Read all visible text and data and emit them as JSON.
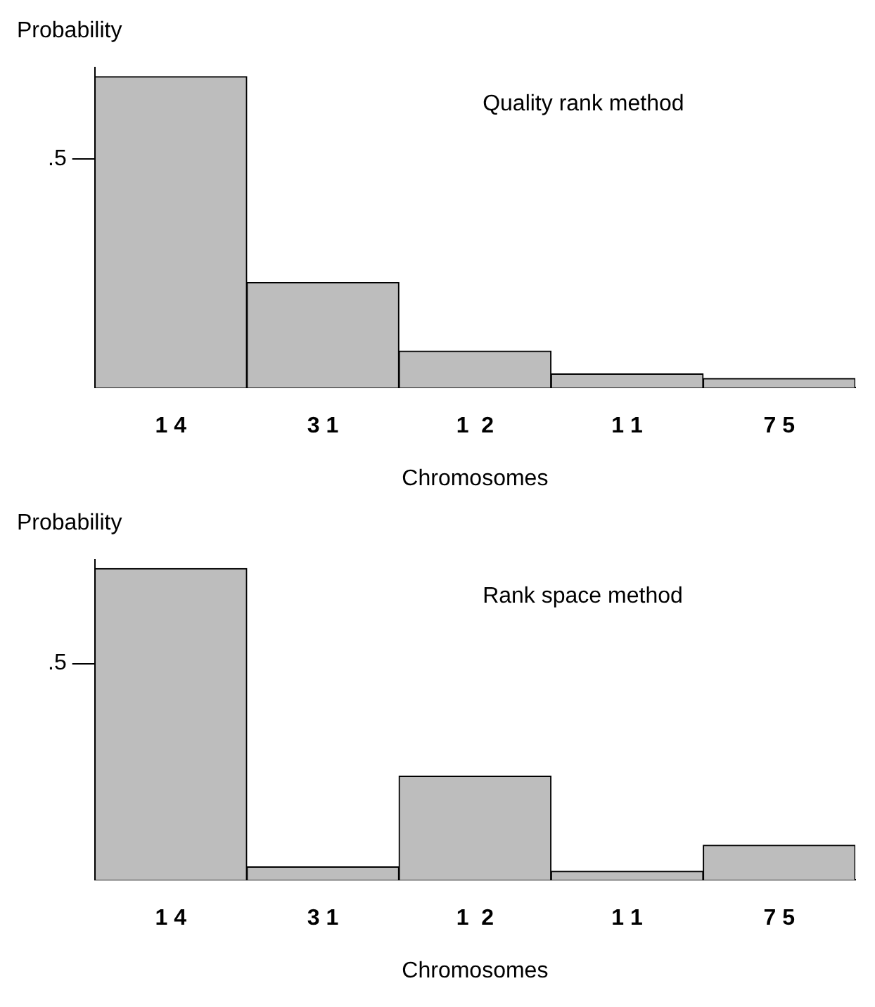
{
  "chart_data": [
    {
      "type": "bar",
      "title": "Quality rank method",
      "xlabel": "Chromosomes",
      "ylabel": "Probability",
      "categories": [
        "1 4",
        "3 1",
        "1  2",
        "1 1",
        "7 5"
      ],
      "values": [
        0.68,
        0.23,
        0.08,
        0.03,
        0.02
      ],
      "color": "#bdbdbd",
      "ylim": [
        0,
        0.7
      ],
      "yticks": [
        {
          "value": 0.5,
          "label": ".5"
        }
      ],
      "grid": false,
      "legend": false
    },
    {
      "type": "bar",
      "title": "Rank space method",
      "xlabel": "Chromosomes",
      "ylabel": "Probability",
      "categories": [
        "1 4",
        "3 1",
        "1  2",
        "1 1",
        "7 5"
      ],
      "values": [
        0.72,
        0.03,
        0.24,
        0.02,
        0.08
      ],
      "color": "#bdbdbd",
      "ylim": [
        0,
        0.74
      ],
      "yticks": [
        {
          "value": 0.5,
          "label": ".5"
        }
      ],
      "grid": false,
      "legend": false
    }
  ]
}
